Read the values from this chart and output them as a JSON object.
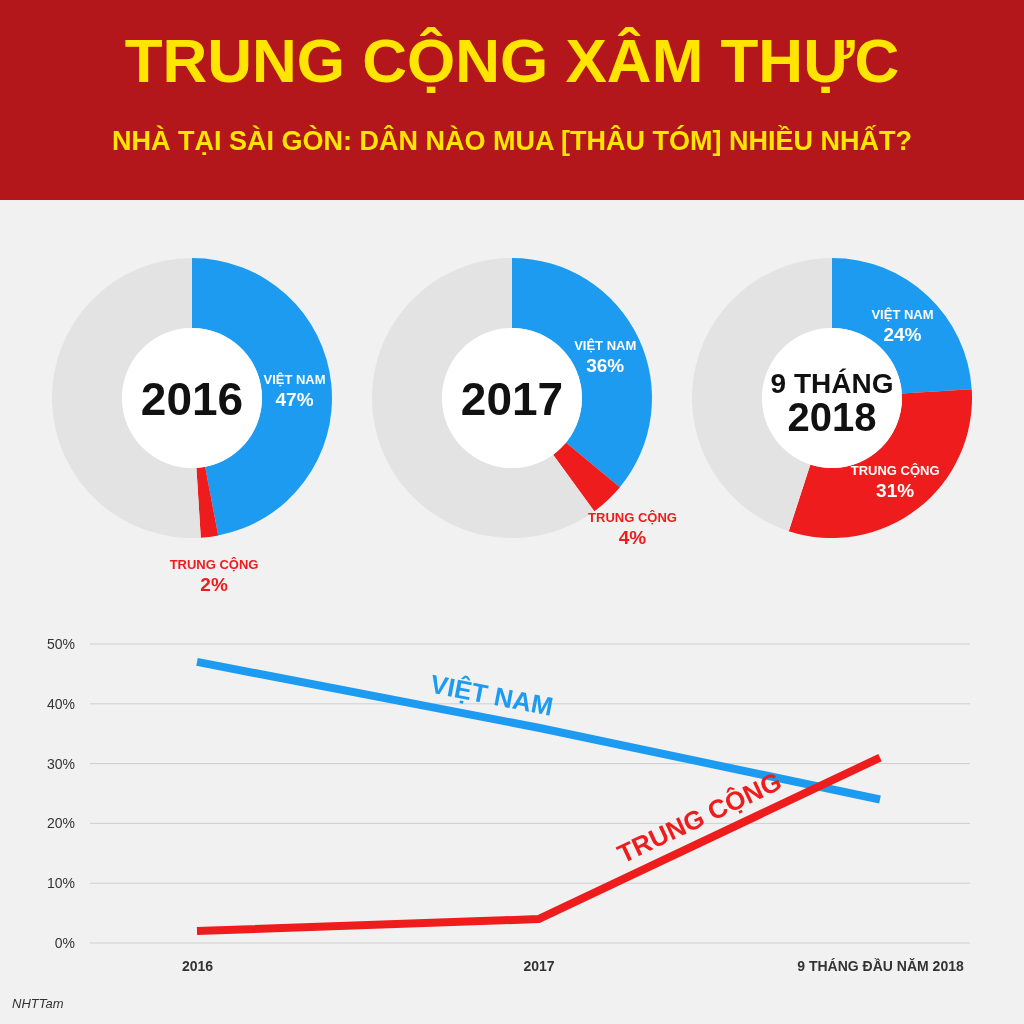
{
  "chart_data": [
    {
      "type": "other",
      "title": "TRUNG CỘNG XÂM THỰC",
      "subtitle": "NHÀ TẠI SÀI GÒN: DÂN NÀO MUA [THÂU TÓM] NHIỀU NHẤT?"
    },
    {
      "type": "donut",
      "title": "2016",
      "categories": [
        "VIỆT NAM",
        "TRUNG CỘNG",
        null
      ],
      "values": [
        47,
        2,
        51
      ],
      "colors": [
        "#1d9bf0",
        "#ee1c1c",
        "#e3e3e3"
      ],
      "value_labels": [
        "47%",
        "2%",
        null
      ]
    },
    {
      "type": "donut",
      "title": "2017",
      "categories": [
        "VIỆT NAM",
        "TRUNG CỘNG",
        null
      ],
      "values": [
        36,
        4,
        60
      ],
      "colors": [
        "#1d9bf0",
        "#ee1c1c",
        "#e3e3e3"
      ],
      "value_labels": [
        "36%",
        "4%",
        null
      ]
    },
    {
      "type": "donut",
      "title": "9 THÁNG 2018",
      "categories": [
        "VIỆT NAM",
        "TRUNG CỘNG",
        null
      ],
      "values": [
        24,
        31,
        45
      ],
      "colors": [
        "#1d9bf0",
        "#ee1c1c",
        "#e3e3e3"
      ],
      "value_labels": [
        "24%",
        "31%",
        null
      ]
    },
    {
      "type": "line",
      "categories": [
        "2016",
        "2017",
        "9 THÁNG ĐẦU NĂM 2018"
      ],
      "series": [
        {
          "name": "VIỆT NAM",
          "color": "#1d9bf0",
          "values": [
            47,
            36,
            24
          ]
        },
        {
          "name": "TRUNG CỘNG",
          "color": "#ee1c1c",
          "values": [
            2,
            4,
            31
          ]
        }
      ],
      "ylim": [
        0,
        50
      ],
      "yticks": [
        {
          "value": 0,
          "label": "0%"
        },
        {
          "value": 10,
          "label": "10%"
        },
        {
          "value": 20,
          "label": "20%"
        },
        {
          "value": 30,
          "label": "30%"
        },
        {
          "value": 40,
          "label": "40%"
        },
        {
          "value": 50,
          "label": "50%"
        }
      ],
      "grid": "y",
      "line_style": "solid",
      "annotations": [
        "NHTTam"
      ]
    }
  ]
}
